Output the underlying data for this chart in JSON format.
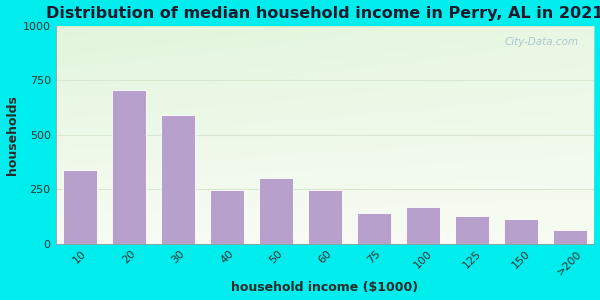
{
  "title": "Distribution of median household income in Perry, AL in 2021",
  "xlabel": "household income ($1000)",
  "ylabel": "households",
  "categories": [
    "10",
    "20",
    "30",
    "40",
    "50",
    "60",
    "75",
    "100",
    "125",
    "150",
    ">200"
  ],
  "values": [
    340,
    705,
    590,
    245,
    300,
    245,
    140,
    170,
    130,
    115,
    65
  ],
  "bar_color": "#b8a0cc",
  "bar_edge_color": "#ffffff",
  "ylim": [
    0,
    1000
  ],
  "yticks": [
    0,
    250,
    500,
    750,
    1000
  ],
  "background_outer": "#00eded",
  "background_inner_top": "#d8eecc",
  "background_inner_bottom": "#f8fcf4",
  "title_fontsize": 11.5,
  "title_color": "#1a1a2e",
  "axis_label_fontsize": 9,
  "axis_label_color": "#2a2a2a",
  "tick_fontsize": 8,
  "tick_color": "#333333",
  "watermark_color": "#a0bfcf",
  "grid_color": "#d8e8d0"
}
